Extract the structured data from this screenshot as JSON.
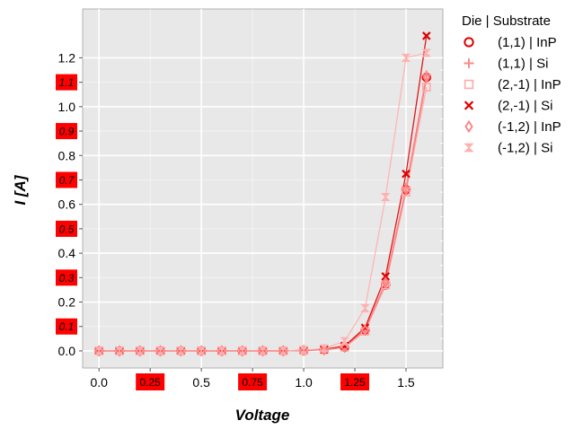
{
  "chart_data": {
    "type": "line",
    "title": "",
    "xlabel": "Voltage",
    "ylabel": "I [A]",
    "xlim": [
      -0.08,
      1.68
    ],
    "ylim": [
      -0.07,
      1.4
    ],
    "grid": true,
    "legend": {
      "title": "Die | Substrate",
      "placement": "outside-right"
    },
    "x_ticks": [
      {
        "value": 0.0,
        "label": "0.0",
        "highlight": false
      },
      {
        "value": 0.25,
        "label": "0.25",
        "highlight": true
      },
      {
        "value": 0.5,
        "label": "0.5",
        "highlight": false
      },
      {
        "value": 0.75,
        "label": "0.75",
        "highlight": true
      },
      {
        "value": 1.0,
        "label": "1.0",
        "highlight": false
      },
      {
        "value": 1.25,
        "label": "1.25",
        "highlight": true
      },
      {
        "value": 1.5,
        "label": "1.5",
        "highlight": false
      }
    ],
    "y_ticks": [
      {
        "value": 0.0,
        "label": "0.0",
        "highlight": false
      },
      {
        "value": 0.1,
        "label": "0.1",
        "highlight": true
      },
      {
        "value": 0.2,
        "label": "0.2",
        "highlight": false
      },
      {
        "value": 0.3,
        "label": "0.3",
        "highlight": true
      },
      {
        "value": 0.4,
        "label": "0.4",
        "highlight": false
      },
      {
        "value": 0.5,
        "label": "0.5",
        "highlight": true
      },
      {
        "value": 0.6,
        "label": "0.6",
        "highlight": false
      },
      {
        "value": 0.7,
        "label": "0.7",
        "highlight": true
      },
      {
        "value": 0.8,
        "label": "0.8",
        "highlight": false
      },
      {
        "value": 0.9,
        "label": "0.9",
        "highlight": true
      },
      {
        "value": 1.0,
        "label": "1.0",
        "highlight": false
      },
      {
        "value": 1.1,
        "label": "1.1",
        "highlight": true
      },
      {
        "value": 1.2,
        "label": "1.2",
        "highlight": false
      }
    ],
    "x": [
      0.0,
      0.1,
      0.2,
      0.3,
      0.4,
      0.5,
      0.6,
      0.7,
      0.8,
      0.9,
      1.0,
      1.1,
      1.2,
      1.3,
      1.4,
      1.5,
      1.6
    ],
    "series": [
      {
        "name": "(1,1) | InP",
        "color": "#dd0000",
        "marker": "circle",
        "values": [
          0,
          0,
          0,
          0,
          0,
          0,
          0,
          0,
          0,
          0,
          0.002,
          0.005,
          0.015,
          0.085,
          0.27,
          0.66,
          1.12
        ]
      },
      {
        "name": "(1,1) | Si",
        "color": "#ff8a8a",
        "marker": "plus",
        "values": [
          0,
          0,
          0,
          0,
          0,
          0,
          0,
          0,
          0,
          0,
          0.002,
          0.005,
          0.018,
          0.09,
          0.28,
          0.67,
          1.13
        ]
      },
      {
        "name": "(2,-1) | InP",
        "color": "#ffaaaa",
        "marker": "square",
        "values": [
          0,
          0,
          0,
          0,
          0,
          0,
          0,
          0,
          0,
          0,
          0.002,
          0.005,
          0.015,
          0.08,
          0.27,
          0.65,
          1.08
        ]
      },
      {
        "name": "(2,-1) | Si",
        "color": "#dd0000",
        "marker": "x",
        "values": [
          0,
          0,
          0,
          0,
          0,
          0,
          0,
          0,
          0,
          0,
          0.002,
          0.006,
          0.02,
          0.095,
          0.305,
          0.725,
          1.29
        ]
      },
      {
        "name": "(-1,2) | InP",
        "color": "#ff8080",
        "marker": "diamond",
        "values": [
          0,
          0,
          0,
          0,
          0,
          0,
          0,
          0,
          0,
          0,
          0.002,
          0.005,
          0.015,
          0.085,
          0.28,
          0.66,
          1.12
        ]
      },
      {
        "name": "(-1,2) | Si",
        "color": "#ffb0b0",
        "marker": "hourglass",
        "values": [
          0,
          0,
          0,
          0,
          0,
          0,
          0,
          0,
          0,
          0,
          0.003,
          0.01,
          0.04,
          0.175,
          0.63,
          1.2,
          1.22
        ]
      }
    ],
    "colors": {
      "background": "#e8e8e8",
      "grid": "#ffffff",
      "highlight": "#ff0000"
    }
  }
}
